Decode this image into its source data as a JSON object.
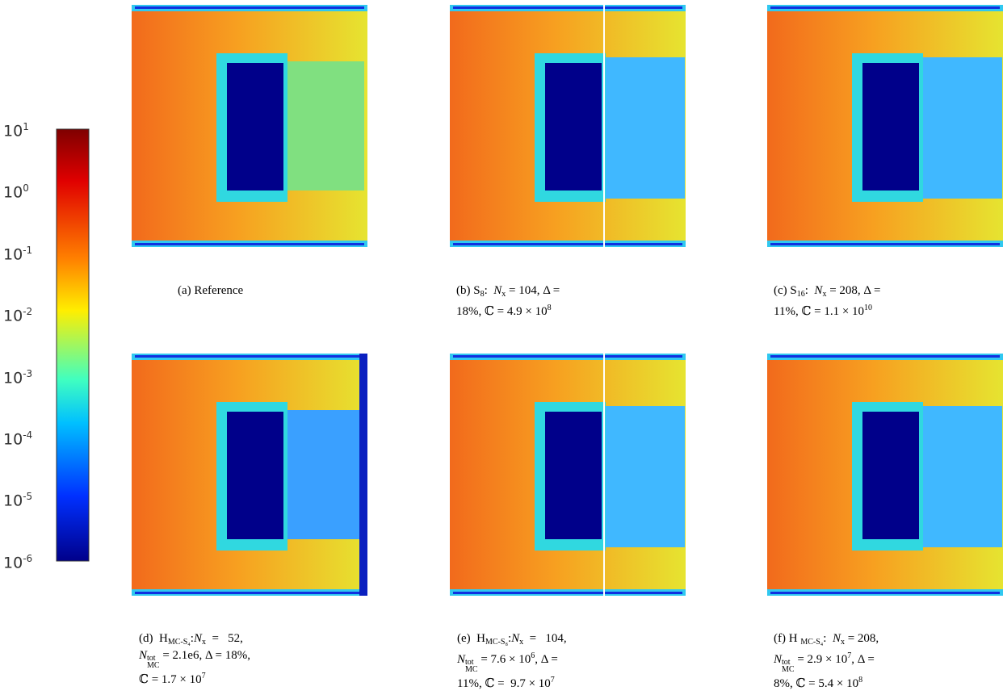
{
  "colorbar": {
    "labels": [
      {
        "base": "10",
        "exp": "1"
      },
      {
        "base": "10",
        "exp": "0"
      },
      {
        "base": "10",
        "exp": "-1"
      },
      {
        "base": "10",
        "exp": "-2"
      },
      {
        "base": "10",
        "exp": "-3"
      },
      {
        "base": "10",
        "exp": "-4"
      },
      {
        "base": "10",
        "exp": "-5"
      },
      {
        "base": "10",
        "exp": "-6"
      }
    ]
  },
  "panels": [
    {
      "caption": [
        [
          {
            "text": "(a) Reference"
          }
        ]
      ]
    },
    {
      "caption": [
        [
          {
            "text": "(b) S"
          },
          {
            "text": "8",
            "style": "sub"
          },
          {
            "text": ":  "
          },
          {
            "text": "N",
            "style": "i"
          },
          {
            "text": "x",
            "style": "sub"
          },
          {
            "text": " = 104, Δ ="
          }
        ],
        [
          {
            "text": "18%, ℂ = 4.9 × 10"
          },
          {
            "text": "8",
            "style": "sup"
          }
        ]
      ]
    },
    {
      "caption": [
        [
          {
            "text": "(c) S"
          },
          {
            "text": "16",
            "style": "sub"
          },
          {
            "text": ":  "
          },
          {
            "text": "N",
            "style": "i"
          },
          {
            "text": "x",
            "style": "sub"
          },
          {
            "text": " = 208, Δ ="
          }
        ],
        [
          {
            "text": "11%, ℂ = 1.1 × 10"
          },
          {
            "text": "10",
            "style": "sup"
          }
        ]
      ]
    },
    {
      "caption": [
        [
          {
            "text": "(d)  H"
          },
          {
            "text": "MC-S₄",
            "style": "sub"
          },
          {
            "text": ":"
          },
          {
            "text": "N",
            "style": "i"
          },
          {
            "text": "x",
            "style": "sub"
          },
          {
            "text": "  =   52,"
          }
        ],
        [
          {
            "text": "N",
            "style": "i"
          },
          {
            "text": "tot",
            "style": "sup"
          },
          {
            "text": "MC",
            "style": "sub"
          },
          {
            "text": " = 2.1e6, Δ = 18%,"
          }
        ],
        [
          {
            "text": "ℂ = 1.7 × 10"
          },
          {
            "text": "7",
            "style": "sup"
          }
        ]
      ]
    },
    {
      "caption": [
        [
          {
            "text": "(e)  H"
          },
          {
            "text": "MC-S₈",
            "style": "sub"
          },
          {
            "text": ":"
          },
          {
            "text": "N",
            "style": "i"
          },
          {
            "text": "x",
            "style": "sub"
          },
          {
            "text": "  =   104,"
          }
        ],
        [
          {
            "text": "N",
            "style": "i"
          },
          {
            "text": "tot",
            "style": "sup"
          },
          {
            "text": "MC",
            "style": "sub"
          },
          {
            "text": " = 7.6 × 10"
          },
          {
            "text": "6",
            "style": "sup"
          },
          {
            "text": ", Δ ="
          }
        ],
        [
          {
            "text": "11%, ℂ =  9.7 × 10"
          },
          {
            "text": "7",
            "style": "sup"
          }
        ]
      ]
    },
    {
      "caption": [
        [
          {
            "text": "(f) H "
          },
          {
            "text": "MC-S₄",
            "style": "sub"
          },
          {
            "text": ":  "
          },
          {
            "text": "N",
            "style": "i"
          },
          {
            "text": "x",
            "style": "sub"
          },
          {
            "text": " = 208,"
          }
        ],
        [
          {
            "text": "N",
            "style": "i"
          },
          {
            "text": "tot",
            "style": "sup"
          },
          {
            "text": "MC",
            "style": "sub"
          },
          {
            "text": " = 2.9 × 10"
          },
          {
            "text": "7",
            "style": "sup"
          },
          {
            "text": ", Δ ="
          }
        ],
        [
          {
            "text": "8%, ℂ = 5.4 × 10"
          },
          {
            "text": "8",
            "style": "sup"
          }
        ]
      ]
    }
  ]
}
